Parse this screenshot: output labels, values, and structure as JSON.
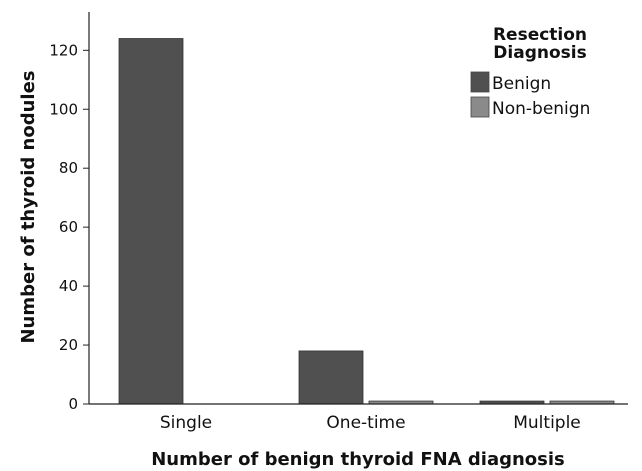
{
  "chart_data": {
    "type": "bar",
    "categories": [
      "Single",
      "One-time",
      "Multiple"
    ],
    "series": [
      {
        "name": "Benign",
        "values": [
          124,
          18,
          1
        ],
        "color": "#505050"
      },
      {
        "name": "Non-benign",
        "values": [
          0,
          1,
          1
        ],
        "color": "#8a8a8a"
      }
    ],
    "xlabel": "Number of benign thyroid FNA diagnosis",
    "ylabel": "Number of thyroid nodules",
    "ylim": [
      0,
      133
    ],
    "yticks": [
      0,
      20,
      40,
      60,
      80,
      100,
      120
    ],
    "legend": {
      "title_lines": [
        "Resection",
        "Diagnosis"
      ],
      "position": "top-right"
    },
    "grid": false
  }
}
